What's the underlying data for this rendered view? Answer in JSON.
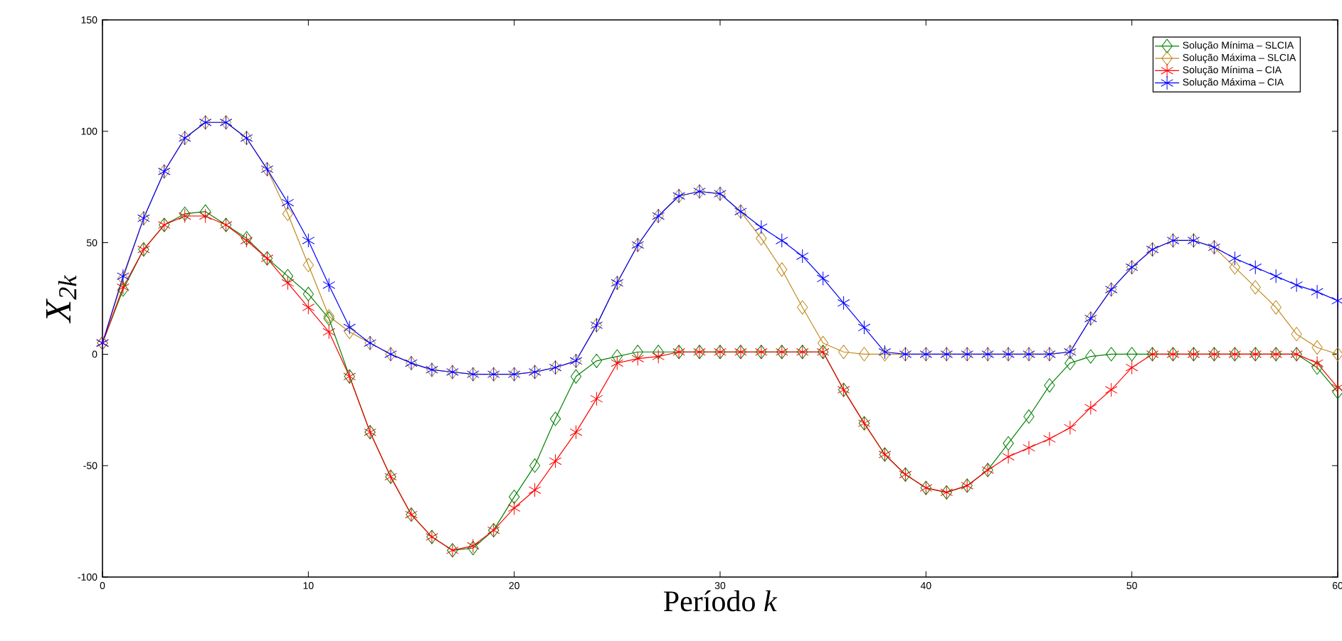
{
  "chart_data": {
    "type": "line",
    "xlabel": "Período *k*",
    "ylabel": "X$_{2k}$",
    "x": [
      0,
      1,
      2,
      3,
      4,
      5,
      6,
      7,
      8,
      9,
      10,
      11,
      12,
      13,
      14,
      15,
      16,
      17,
      18,
      19,
      20,
      21,
      22,
      23,
      24,
      25,
      26,
      27,
      28,
      29,
      30,
      31,
      32,
      33,
      34,
      35,
      36,
      37,
      38,
      39,
      40,
      41,
      42,
      43,
      44,
      45,
      46,
      47,
      48,
      49,
      50,
      51,
      52,
      53,
      54,
      55,
      56,
      57,
      58,
      59,
      60
    ],
    "xlim": [
      0,
      60
    ],
    "xticks": [
      0,
      10,
      20,
      30,
      40,
      50,
      60
    ],
    "ylim": [
      -100,
      150
    ],
    "yticks": [
      -100,
      -50,
      0,
      50,
      100,
      150
    ],
    "legend": "top right",
    "line_style": "solid",
    "series": [
      {
        "name": "Solução Mínima – SLCIA",
        "color": "#008000",
        "marker": "diamond",
        "values": [
          5,
          29,
          47,
          58,
          63,
          64,
          58,
          52,
          43,
          35,
          27,
          16,
          -10,
          -35,
          -55,
          -72,
          -82,
          -88,
          -87,
          -79,
          -64,
          -50,
          -29,
          -10,
          -3,
          -1,
          1,
          1,
          1,
          1,
          1,
          1,
          1,
          1,
          1,
          1,
          -16,
          -31,
          -45,
          -54,
          -60,
          -62,
          -59,
          -52,
          -40,
          -28,
          -14,
          -4,
          -1,
          0,
          0,
          0,
          0,
          0,
          0,
          0,
          0,
          0,
          0,
          -6,
          -17
        ]
      },
      {
        "name": "Solução Máxima – SLCIA",
        "color": "#c08a1e",
        "marker": "diamond",
        "values": [
          5,
          34,
          61,
          82,
          97,
          104,
          104,
          97,
          83,
          63,
          40,
          17,
          10,
          5,
          0,
          -4,
          -7,
          -8,
          -9,
          -9,
          -9,
          -8,
          -6,
          -3,
          13,
          32,
          49,
          62,
          71,
          73,
          72,
          64,
          52,
          38,
          21,
          5,
          1,
          0,
          0,
          0,
          0,
          0,
          0,
          0,
          0,
          0,
          0,
          1,
          16,
          29,
          39,
          47,
          51,
          51,
          48,
          39,
          30,
          21,
          9,
          3,
          0
        ]
      },
      {
        "name": "Solução Mínima – CIA",
        "color": "#ff0000",
        "marker": "cross",
        "values": [
          5,
          30,
          47,
          58,
          62,
          62,
          58,
          51,
          43,
          32,
          21,
          10,
          -10,
          -35,
          -55,
          -72,
          -82,
          -88,
          -86,
          -79,
          -69,
          -61,
          -48,
          -35,
          -20,
          -4,
          -2,
          -1,
          1,
          1,
          1,
          1,
          1,
          1,
          1,
          1,
          -16,
          -31,
          -45,
          -54,
          -60,
          -62,
          -59,
          -52,
          -46,
          -42,
          -38,
          -33,
          -24,
          -16,
          -6,
          0,
          0,
          0,
          0,
          0,
          0,
          0,
          0,
          -4,
          -15
        ]
      },
      {
        "name": "Solução Máxima – CIA",
        "color": "#0000ff",
        "marker": "cross",
        "values": [
          5,
          35,
          61,
          82,
          97,
          104,
          104,
          97,
          83,
          68,
          51,
          31,
          12,
          5,
          0,
          -4,
          -7,
          -8,
          -9,
          -9,
          -9,
          -8,
          -6,
          -3,
          13,
          32,
          49,
          62,
          71,
          73,
          72,
          64,
          57,
          51,
          44,
          34,
          23,
          12,
          1,
          0,
          0,
          0,
          0,
          0,
          0,
          0,
          0,
          1,
          16,
          29,
          39,
          47,
          51,
          51,
          48,
          43,
          39,
          35,
          31,
          28,
          24
        ]
      }
    ]
  }
}
